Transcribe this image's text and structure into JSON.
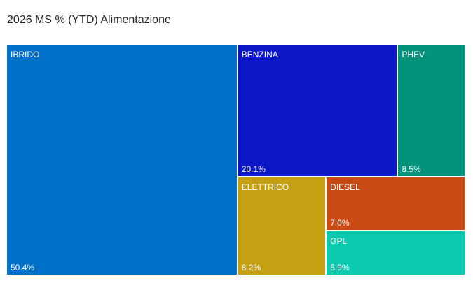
{
  "chart_data": {
    "type": "treemap",
    "title": "2026 MS % (YTD) Alimentazione",
    "items": [
      {
        "category": "IBRIDO",
        "value": 50.4,
        "label": "50.4%",
        "color": "#0070C8"
      },
      {
        "category": "BENZINA",
        "value": 20.1,
        "label": "20.1%",
        "color": "#0C18C8"
      },
      {
        "category": "PHEV",
        "value": 8.5,
        "label": "8.5%",
        "color": "#02937A"
      },
      {
        "category": "ELETTRICO",
        "value": 8.2,
        "label": "8.2%",
        "color": "#C4A012"
      },
      {
        "category": "DIESEL",
        "value": 7.0,
        "label": "7.0%",
        "color": "#C84A14"
      },
      {
        "category": "GPL",
        "value": 5.9,
        "label": "5.9%",
        "color": "#0AC9AF"
      }
    ]
  }
}
